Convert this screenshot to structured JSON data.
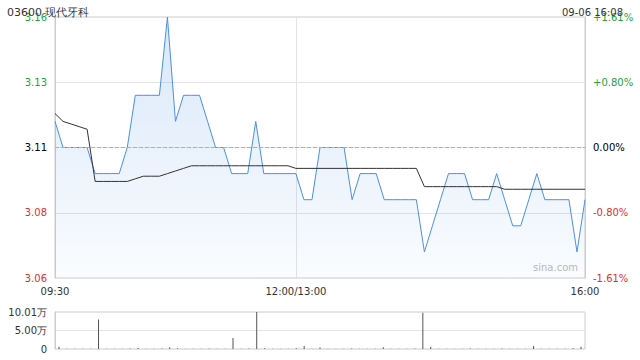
{
  "chart_data": [
    {
      "type": "line",
      "title": "03600 现代牙科",
      "subtitle": "09-06 16:08",
      "annotation": "sina.com",
      "categories": [
        "09:30",
        null,
        null,
        null,
        null,
        null,
        null,
        null,
        null,
        null,
        null,
        null,
        null,
        null,
        null,
        null,
        null,
        null,
        null,
        null,
        null,
        null,
        null,
        null,
        null,
        null,
        null,
        null,
        null,
        null,
        "12:00/13:00",
        null,
        null,
        null,
        null,
        null,
        null,
        null,
        null,
        null,
        null,
        null,
        null,
        null,
        null,
        null,
        null,
        null,
        null,
        null,
        null,
        null,
        null,
        null,
        null,
        null,
        null,
        null,
        null,
        null,
        null,
        null,
        null,
        null,
        null,
        null,
        "16:00"
      ],
      "series": [
        {
          "type": "area",
          "color": "#4a90e2",
          "values": [
            3.12,
            3.11,
            3.11,
            3.11,
            3.11,
            3.1,
            3.1,
            3.1,
            3.1,
            3.11,
            3.13,
            3.13,
            3.13,
            3.13,
            3.16,
            3.12,
            3.13,
            3.13,
            3.13,
            3.12,
            3.11,
            3.11,
            3.1,
            3.1,
            3.1,
            3.12,
            3.1,
            3.1,
            3.1,
            3.1,
            3.1,
            3.09,
            3.09,
            3.11,
            3.11,
            3.11,
            3.11,
            3.09,
            3.1,
            3.1,
            3.1,
            3.09,
            3.09,
            3.09,
            3.09,
            3.09,
            3.07,
            3.08,
            3.09,
            3.1,
            3.1,
            3.1,
            3.09,
            3.09,
            3.09,
            3.1,
            3.09,
            3.08,
            3.08,
            3.09,
            3.1,
            3.09,
            3.09,
            3.09,
            3.09,
            3.07,
            3.09
          ]
        },
        {
          "type": "line",
          "color": "#333333",
          "values": [
            3.123,
            3.12,
            3.119,
            3.118,
            3.117,
            3.097,
            3.097,
            3.097,
            3.097,
            3.097,
            3.098,
            3.099,
            3.099,
            3.099,
            3.1,
            3.101,
            3.102,
            3.103,
            3.103,
            3.103,
            3.103,
            3.103,
            3.103,
            3.103,
            3.103,
            3.103,
            3.103,
            3.103,
            3.103,
            3.103,
            3.102,
            3.102,
            3.102,
            3.102,
            3.102,
            3.102,
            3.102,
            3.102,
            3.102,
            3.102,
            3.102,
            3.102,
            3.102,
            3.102,
            3.102,
            3.102,
            3.095,
            3.095,
            3.095,
            3.095,
            3.095,
            3.095,
            3.095,
            3.095,
            3.095,
            3.095,
            3.094,
            3.094,
            3.094,
            3.094,
            3.094,
            3.094,
            3.094,
            3.094,
            3.094,
            3.094,
            3.094
          ]
        }
      ],
      "ylim": [
        3.06,
        3.16
      ],
      "yticks": [
        3.06,
        {
          "value": 3.085,
          "label": "3.08"
        },
        3.11,
        {
          "value": 3.135,
          "label": "3.13"
        },
        3.16
      ],
      "y2lim": [
        -1.61,
        1.61
      ],
      "y2ticks": [
        {
          "value": -1.61,
          "label": "-1.61%"
        },
        {
          "value": -0.804,
          "label": "-0.80%"
        },
        {
          "value": 0,
          "label": "0.00%"
        },
        {
          "value": 0.804,
          "label": "+0.80%"
        },
        {
          "value": 1.61,
          "label": "+1.61%"
        }
      ],
      "reference": 3.11,
      "grid": true
    },
    {
      "type": "bar",
      "categories": [
        "09:30",
        null,
        null,
        null,
        null,
        null,
        null,
        null,
        null,
        null,
        null,
        null,
        null,
        null,
        null,
        null,
        null,
        null,
        null,
        null,
        null,
        null,
        null,
        null,
        null,
        null,
        null,
        null,
        null,
        null,
        "12:00/13:00",
        null,
        null,
        null,
        null,
        null,
        null,
        null,
        null,
        null,
        null,
        null,
        null,
        null,
        null,
        null,
        null,
        null,
        null,
        null,
        null,
        null,
        null,
        null,
        null,
        null,
        null,
        null,
        null,
        null,
        null,
        null,
        null,
        null,
        null,
        null,
        "16:00"
      ],
      "values": [
        6000,
        1000,
        500,
        800,
        1000,
        80000,
        1000,
        500,
        800,
        1500,
        3000,
        1000,
        800,
        1200,
        5000,
        2000,
        1000,
        800,
        600,
        1500,
        1000,
        800,
        30000,
        1000,
        1200,
        100000,
        2000,
        800,
        600,
        1000,
        2000,
        8000,
        1000,
        4000,
        800,
        600,
        1000,
        1500,
        800,
        600,
        1000,
        5000,
        800,
        600,
        1000,
        1200,
        98000,
        6000,
        1000,
        800,
        600,
        1000,
        1500,
        800,
        600,
        1000,
        1200,
        800,
        600,
        1000,
        8000,
        1000,
        800,
        600,
        1000,
        2000,
        6000
      ],
      "color": "#555555",
      "ylim": [
        0,
        100100
      ],
      "yticks": [
        0,
        {
          "value": 50000,
          "label": "5.00万"
        },
        {
          "value": 100100,
          "label": "10.01万"
        }
      ],
      "grid": true
    }
  ]
}
